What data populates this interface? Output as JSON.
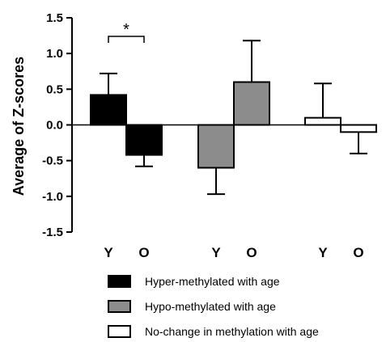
{
  "chart_data": {
    "type": "bar",
    "title": "",
    "xlabel": "",
    "ylabel": "Average of Z-scores",
    "ylim": [
      -1.5,
      1.5
    ],
    "yticks": [
      "1.5",
      "1.0",
      "0.5",
      "0.0",
      "-0.5",
      "-1.0",
      "-1.5"
    ],
    "categories": [
      "Y",
      "O",
      "Y",
      "O",
      "Y",
      "O"
    ],
    "values": [
      0.42,
      -0.42,
      -0.6,
      0.6,
      0.1,
      -0.1
    ],
    "error": [
      0.3,
      0.16,
      0.37,
      0.58,
      0.48,
      0.3
    ],
    "group_index": [
      0,
      0,
      1,
      1,
      2,
      2
    ],
    "series": [
      {
        "name": "Hyper-methylated with age",
        "fill": "#000000"
      },
      {
        "name": "Hypo-methylated with age",
        "fill": "#8c8c8c"
      },
      {
        "name": "No-change in methylation with age",
        "fill": "#ffffff"
      }
    ],
    "significance": {
      "label": "*",
      "between": [
        0,
        1
      ]
    },
    "grid": false,
    "legend_position": "bottom"
  }
}
